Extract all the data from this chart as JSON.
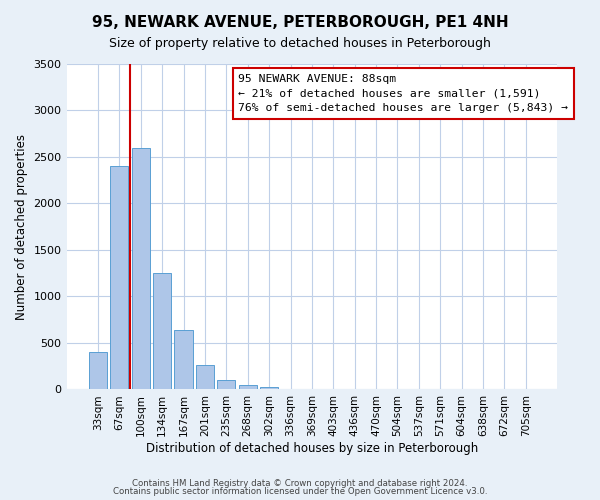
{
  "title": "95, NEWARK AVENUE, PETERBOROUGH, PE1 4NH",
  "subtitle": "Size of property relative to detached houses in Peterborough",
  "xlabel": "Distribution of detached houses by size in Peterborough",
  "ylabel": "Number of detached properties",
  "bar_labels": [
    "33sqm",
    "67sqm",
    "100sqm",
    "134sqm",
    "167sqm",
    "201sqm",
    "235sqm",
    "268sqm",
    "302sqm",
    "336sqm",
    "369sqm",
    "403sqm",
    "436sqm",
    "470sqm",
    "504sqm",
    "537sqm",
    "571sqm",
    "604sqm",
    "638sqm",
    "672sqm",
    "705sqm"
  ],
  "bar_values": [
    400,
    2400,
    2600,
    1250,
    640,
    260,
    100,
    50,
    30,
    10,
    0,
    0,
    0,
    0,
    0,
    0,
    0,
    0,
    0,
    0,
    0
  ],
  "bar_color": "#aec6e8",
  "bar_edge_color": "#5a9fd4",
  "vline_x": 1.5,
  "vline_color": "#cc0000",
  "ylim": [
    0,
    3500
  ],
  "yticks": [
    0,
    500,
    1000,
    1500,
    2000,
    2500,
    3000,
    3500
  ],
  "annotation_box_text": "95 NEWARK AVENUE: 88sqm\n← 21% of detached houses are smaller (1,591)\n76% of semi-detached houses are larger (5,843) →",
  "annotation_box_color": "#ffffff",
  "annotation_box_edge_color": "#cc0000",
  "footnote1": "Contains HM Land Registry data © Crown copyright and database right 2024.",
  "footnote2": "Contains public sector information licensed under the Open Government Licence v3.0.",
  "background_color": "#e8f0f8",
  "plot_bg_color": "#ffffff",
  "grid_color": "#c0d0e8"
}
